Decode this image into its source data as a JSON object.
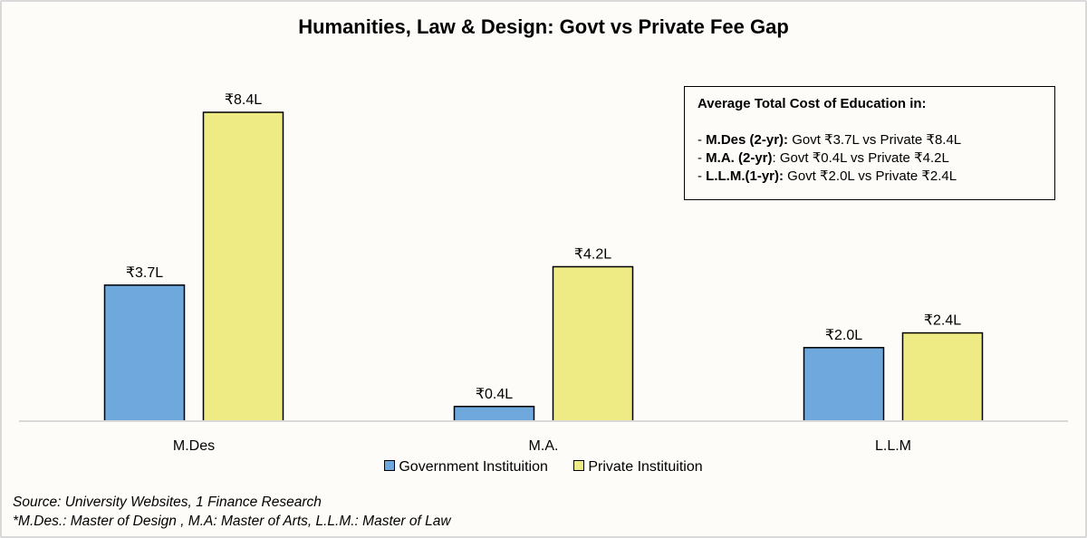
{
  "chart_data": {
    "type": "bar",
    "title": "Humanities, Law & Design: Govt vs Private Fee Gap",
    "xlabel": "",
    "ylabel": "",
    "ylim": [
      0,
      8.4
    ],
    "grid": false,
    "legend_position": "bottom",
    "categories": [
      "M.Des",
      "M.A.",
      "L.L.M"
    ],
    "series": [
      {
        "name": "Government Instituition",
        "color": "#6fa8dc",
        "values": [
          3.7,
          0.4,
          2.0
        ],
        "labels": [
          "₹3.7L",
          "₹0.4L",
          "₹2.0L"
        ]
      },
      {
        "name": "Private Instituition",
        "color": "#eeea84",
        "values": [
          8.4,
          4.2,
          2.4
        ],
        "labels": [
          "₹8.4L",
          "₹4.2L",
          "₹2.4L"
        ]
      }
    ]
  },
  "info_box": {
    "heading": "Average Total Cost of Education in:",
    "lines": [
      {
        "prefix": "- ",
        "bold": "M.Des (2-yr):",
        "text": " Govt ₹3.7L vs Private ₹8.4L"
      },
      {
        "prefix": "- ",
        "bold": "M.A. (2-yr)",
        "text": ": Govt ₹0.4L vs Private ₹4.2L"
      },
      {
        "prefix": "- ",
        "bold": "L.L.M.(1-yr):",
        "text": " Govt ₹2.0L vs Private ₹2.4L"
      }
    ]
  },
  "footnotes": {
    "source": "Source: University Websites, 1 Finance Research",
    "abbreviations": "*M.Des.: Master of Design , M.A: Master of Arts, L.L.M.: Master of Law"
  }
}
